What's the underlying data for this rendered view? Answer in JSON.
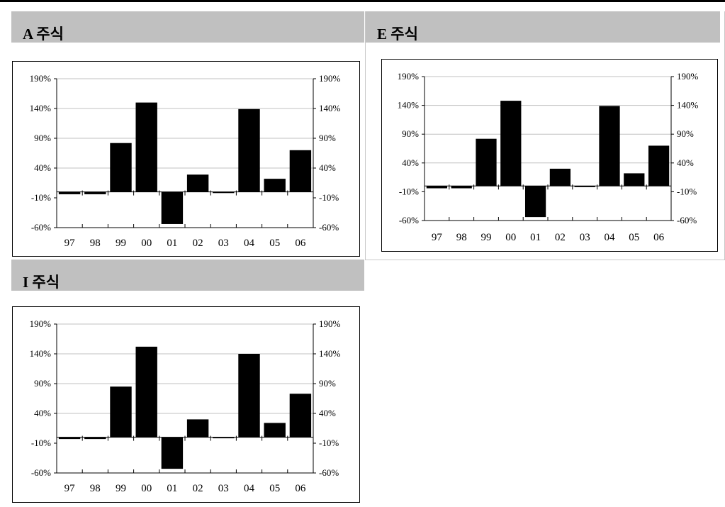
{
  "panels": [
    {
      "title": "A 주식"
    },
    {
      "title": "E 주식"
    },
    {
      "title": "I 주식"
    }
  ],
  "chart_data": [
    {
      "type": "bar",
      "title": "A 주식",
      "categories": [
        "97",
        "98",
        "99",
        "00",
        "01",
        "02",
        "03",
        "04",
        "05",
        "06"
      ],
      "values": [
        -4,
        -4,
        82,
        150,
        -54,
        29,
        -2,
        139,
        22,
        70
      ],
      "ylim": [
        -60,
        190
      ],
      "yticks": [
        -60,
        -10,
        40,
        90,
        140,
        190
      ],
      "ytick_labels": [
        "-60%",
        "-10%",
        "40%",
        "90%",
        "140%",
        "190%"
      ],
      "secondary_axis": true,
      "grid": true,
      "xlabel": "",
      "ylabel": ""
    },
    {
      "type": "bar",
      "title": "E 주식",
      "categories": [
        "97",
        "98",
        "99",
        "00",
        "01",
        "02",
        "03",
        "04",
        "05",
        "06"
      ],
      "values": [
        -4,
        -4,
        82,
        148,
        -54,
        30,
        -2,
        139,
        22,
        70
      ],
      "ylim": [
        -60,
        190
      ],
      "yticks": [
        -60,
        -10,
        40,
        90,
        140,
        190
      ],
      "ytick_labels": [
        "-60%",
        "-10%",
        "40%",
        "90%",
        "140%",
        "190%"
      ],
      "secondary_axis": true,
      "grid": true,
      "xlabel": "",
      "ylabel": ""
    },
    {
      "type": "bar",
      "title": "I 주식",
      "categories": [
        "97",
        "98",
        "99",
        "00",
        "01",
        "02",
        "03",
        "04",
        "05",
        "06"
      ],
      "values": [
        -3,
        -3,
        85,
        152,
        -53,
        30,
        0,
        140,
        24,
        73
      ],
      "ylim": [
        -60,
        190
      ],
      "yticks": [
        -60,
        -10,
        40,
        90,
        140,
        190
      ],
      "ytick_labels": [
        "-60%",
        "-10%",
        "40%",
        "90%",
        "140%",
        "190%"
      ],
      "secondary_axis": true,
      "grid": true,
      "xlabel": "",
      "ylabel": ""
    }
  ]
}
